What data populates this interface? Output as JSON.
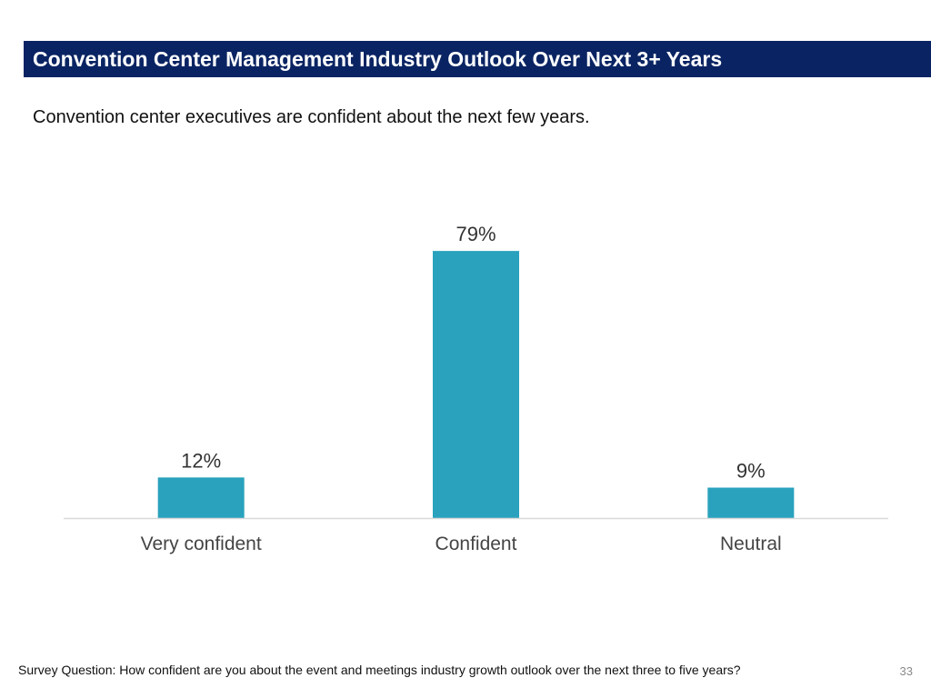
{
  "header": {
    "title": "Convention Center Management Industry Outlook Over Next 3+ Years",
    "subtitle": "Convention center executives are confident about the next few years."
  },
  "chart_data": {
    "type": "bar",
    "title": "",
    "xlabel": "",
    "ylabel": "",
    "categories": [
      "Very confident",
      "Confident",
      "Neutral"
    ],
    "values": [
      12,
      79,
      9
    ],
    "value_labels": [
      "12%",
      "79%",
      "9%"
    ],
    "unit": "%",
    "ylim": [
      0,
      100
    ],
    "grid": false,
    "legend": "none",
    "bar_color": "#2aa2bd",
    "baseline_color": "#d9d9d9",
    "label_color": "#333333"
  },
  "footer": {
    "survey_question": "Survey Question: How confident are you about the event and meetings industry growth outlook over the next three to five years?",
    "page_number": "33"
  },
  "colors": {
    "title_bar": "#0a2463",
    "title_text": "#ffffff"
  }
}
